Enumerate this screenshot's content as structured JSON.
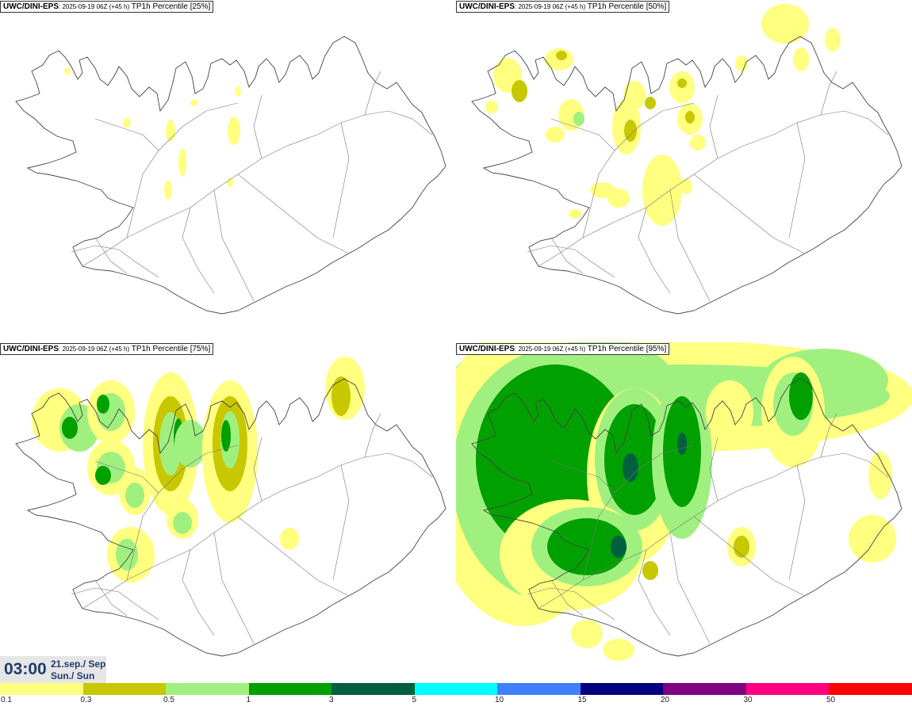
{
  "panels": [
    {
      "model": "UWC/DINI-EPS",
      "run": ": 2025-09-19 06Z (+45 h)",
      "product": " TP1h Percentile [25%]",
      "level": 1
    },
    {
      "model": "UWC/DINI-EPS",
      "run": ": 2025-09-19 06Z (+45 h)",
      "product": " TP1h Percentile [50%]",
      "level": 2
    },
    {
      "model": "UWC/DINI-EPS",
      "run": ": 2025-09-19 06Z (+45 h)",
      "product": " TP1h Percentile [75%]",
      "level": 3
    },
    {
      "model": "UWC/DINI-EPS",
      "run": ": 2025-09-19 06Z (+45 h)",
      "product": " TP1h Percentile [95%]",
      "level": 4
    }
  ],
  "valid_time": {
    "time": "03:00",
    "date": "21.sep./ Sep",
    "day": "Sun./ Sun"
  },
  "legend": {
    "colors": [
      "#ffff80",
      "#c8c800",
      "#a0f080",
      "#00a000",
      "#006040",
      "#00ffff",
      "#4080ff",
      "#000080",
      "#800080",
      "#ff0080",
      "#ff0000"
    ],
    "ticks": [
      "0.1",
      "0.3",
      "0.5",
      "1",
      "3",
      "5",
      "10",
      "15",
      "20",
      "30",
      "50"
    ]
  }
}
